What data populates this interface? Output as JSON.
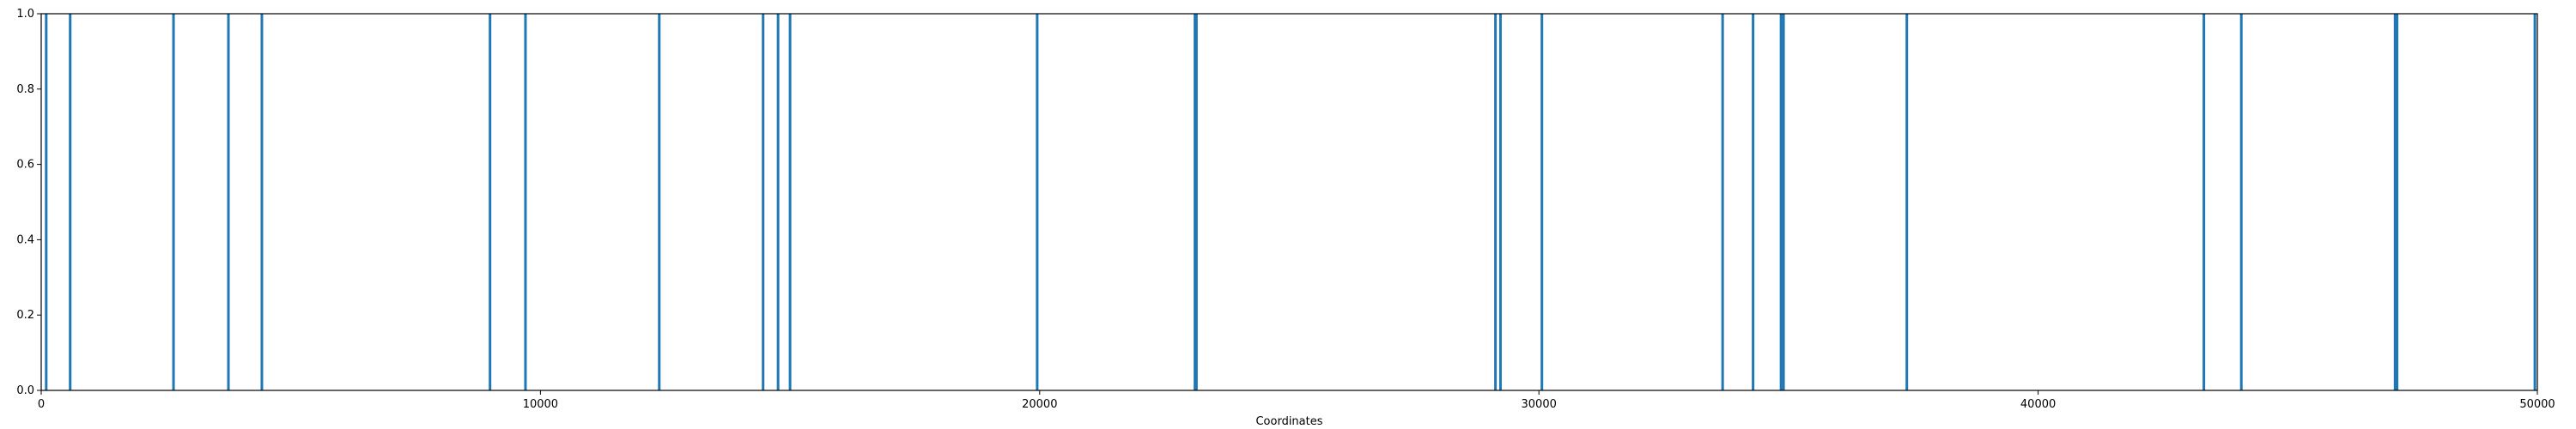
{
  "chart_data": {
    "type": "bar",
    "title": "",
    "xlabel": "Coordinates",
    "ylabel": "",
    "xlim": [
      0,
      50000
    ],
    "ylim": [
      0,
      1.0
    ],
    "x_ticks": [
      0,
      10000,
      20000,
      30000,
      40000,
      50000
    ],
    "y_ticks": [
      0.0,
      0.2,
      0.4,
      0.6,
      0.8,
      1.0
    ],
    "x_tick_labels": [
      "0",
      "10000",
      "20000",
      "30000",
      "40000",
      "50000"
    ],
    "y_tick_labels": [
      "0.0",
      "0.2",
      "0.4",
      "0.6",
      "0.8",
      "1.0"
    ],
    "grid": false,
    "bar_color": "#1f77b4",
    "x": [
      100,
      580,
      2650,
      3750,
      4420,
      8990,
      9700,
      12380,
      14460,
      14760,
      15000,
      19950,
      23110,
      23140,
      29130,
      29230,
      30060,
      33680,
      34290,
      34850,
      34900,
      37370,
      43320,
      44070,
      47150,
      47190,
      49950
    ],
    "values": [
      1,
      1,
      1,
      1,
      1,
      1,
      1,
      1,
      1,
      1,
      1,
      1,
      1,
      1,
      1,
      1,
      1,
      1,
      1,
      1,
      1,
      1,
      1,
      1,
      1,
      1,
      1
    ]
  }
}
